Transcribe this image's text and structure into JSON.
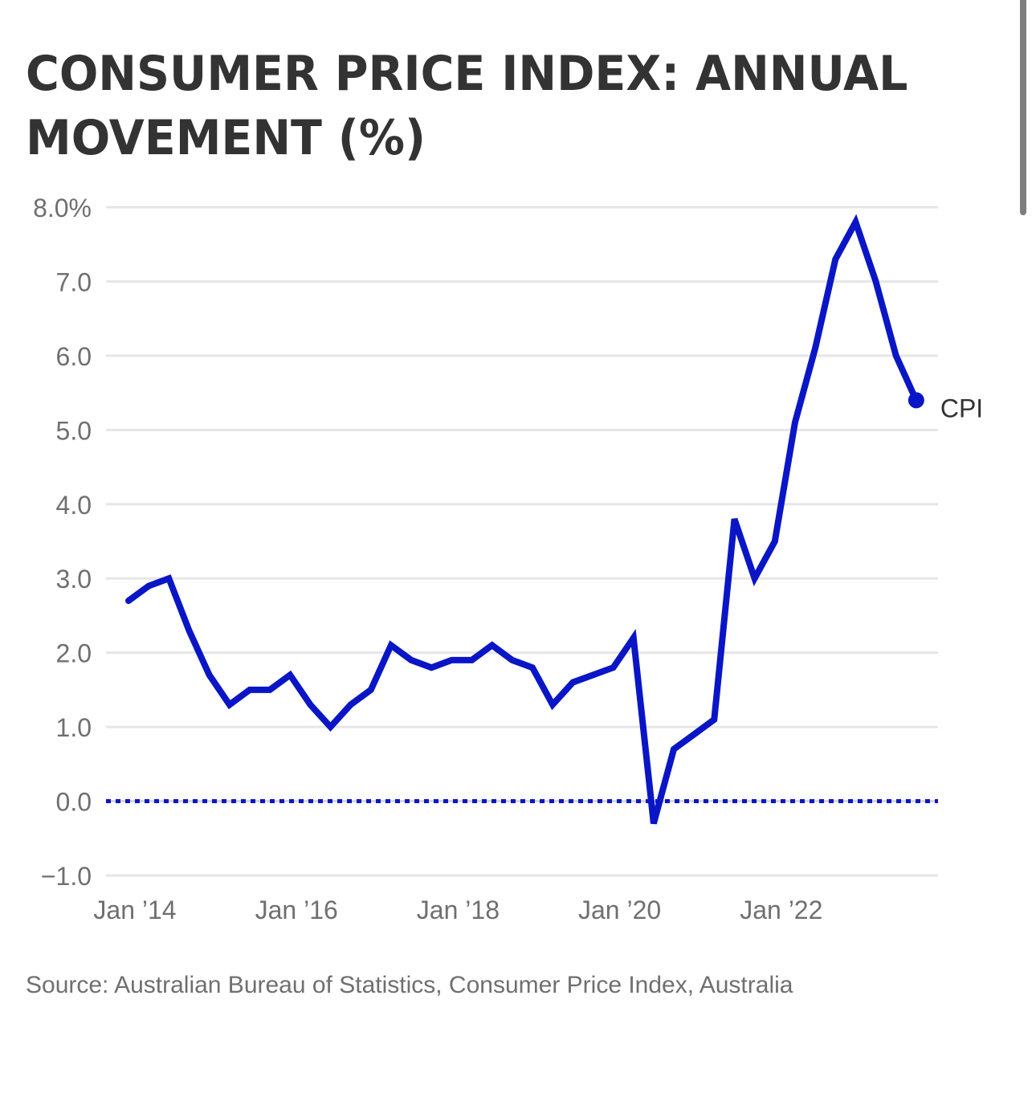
{
  "title": "CONSUMER PRICE INDEX: ANNUAL MOVEMENT (%)",
  "source": "Source: Australian Bureau of Statistics, Consumer Price Index, Australia",
  "colors": {
    "line": "#0a16c6",
    "grid": "#e6e6e6",
    "zero_line": "#0a16c6",
    "tick_text": "#6f6f6f",
    "title": "#333333"
  },
  "chart_data": {
    "type": "line",
    "title": "CONSUMER PRICE INDEX: ANNUAL MOVEMENT (%)",
    "xlabel": "",
    "ylabel": "",
    "ylim": [
      -1.0,
      8.0
    ],
    "yticks": [
      8.0,
      7.0,
      6.0,
      5.0,
      4.0,
      3.0,
      2.0,
      1.0,
      0.0,
      -1.0
    ],
    "ytick_labels": [
      "8.0%",
      "7.0",
      "6.0",
      "5.0",
      "4.0",
      "3.0",
      "2.0",
      "1.0",
      "0.0",
      "−1.0"
    ],
    "xtick_labels": [
      "Jan ’14",
      "Jan ’16",
      "Jan ’18",
      "Jan ’20",
      "Jan ’22"
    ],
    "xtick_positions": [
      0,
      8,
      16,
      24,
      32
    ],
    "grid": true,
    "zero_reference_line": "dotted",
    "legend": "inline-end-label",
    "x": [
      "Mar 2014",
      "Jun 2014",
      "Sep 2014",
      "Dec 2014",
      "Mar 2015",
      "Jun 2015",
      "Sep 2015",
      "Dec 2015",
      "Mar 2016",
      "Jun 2016",
      "Sep 2016",
      "Dec 2016",
      "Mar 2017",
      "Jun 2017",
      "Sep 2017",
      "Dec 2017",
      "Mar 2018",
      "Jun 2018",
      "Sep 2018",
      "Dec 2018",
      "Mar 2019",
      "Jun 2019",
      "Sep 2019",
      "Dec 2019",
      "Mar 2020",
      "Jun 2020",
      "Sep 2020",
      "Dec 2020",
      "Mar 2021",
      "Jun 2021",
      "Sep 2021",
      "Dec 2021",
      "Mar 2022",
      "Jun 2022",
      "Sep 2022",
      "Dec 2022",
      "Mar 2023",
      "Jun 2023",
      "Sep 2023",
      "Dec 2023"
    ],
    "series": [
      {
        "name": "CPI",
        "values": [
          2.7,
          2.9,
          3.0,
          2.3,
          1.7,
          1.3,
          1.5,
          1.5,
          1.7,
          1.3,
          1.0,
          1.3,
          1.5,
          2.1,
          1.9,
          1.8,
          1.9,
          1.9,
          2.1,
          1.9,
          1.8,
          1.3,
          1.6,
          1.7,
          1.8,
          2.2,
          -0.3,
          0.7,
          0.9,
          1.1,
          3.8,
          3.0,
          3.5,
          5.1,
          6.1,
          7.3,
          7.8,
          7.0,
          6.0,
          5.4
        ],
        "end_marker": true
      }
    ]
  }
}
